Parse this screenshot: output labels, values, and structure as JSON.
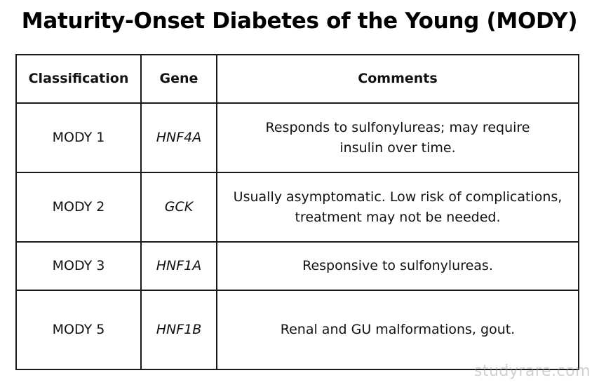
{
  "title": "Maturity-Onset Diabetes of the Young (MODY)",
  "table": {
    "headers": {
      "classification": "Classification",
      "gene": "Gene",
      "comments": "Comments"
    },
    "rows": [
      {
        "classification": "MODY 1",
        "gene": "HNF4A",
        "comments": "Responds to sulfonylureas; may require insulin over time."
      },
      {
        "classification": "MODY 2",
        "gene": "GCK",
        "comments": "Usually asymptomatic. Low risk of complications, treatment may not be needed."
      },
      {
        "classification": "MODY 3",
        "gene": "HNF1A",
        "comments": "Responsive to sulfonylureas."
      },
      {
        "classification": "MODY 5",
        "gene": "HNF1B",
        "comments": "Renal and GU malformations, gout."
      }
    ]
  },
  "watermark": "studyrare.com"
}
